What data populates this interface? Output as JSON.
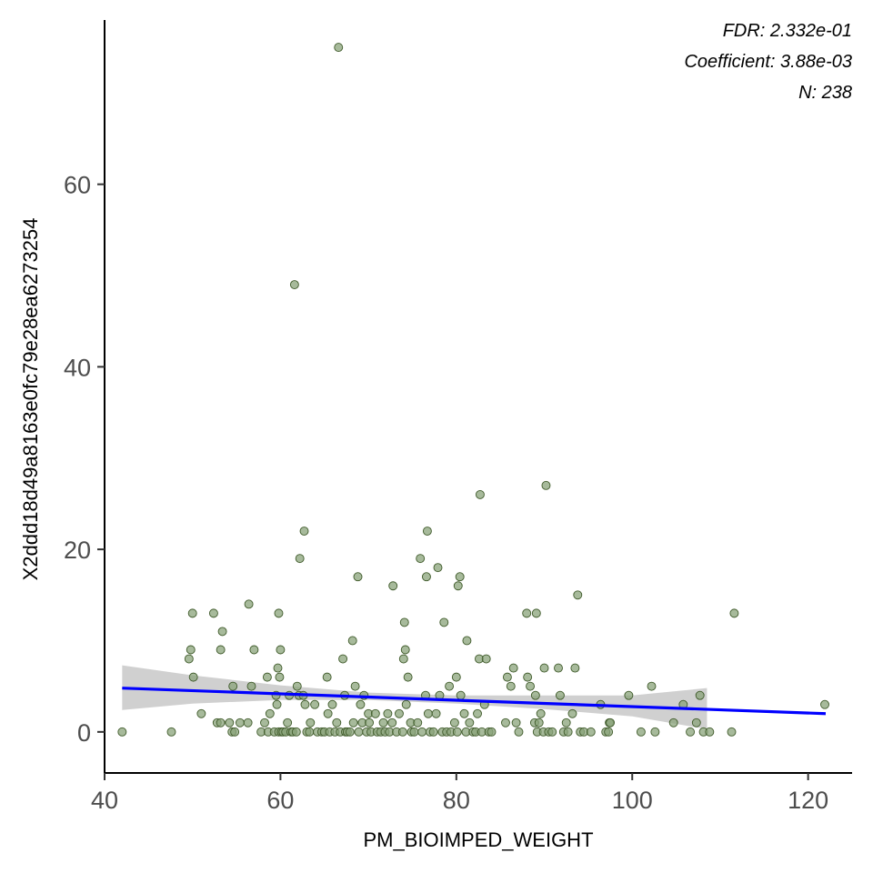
{
  "chart_data": {
    "type": "scatter",
    "title": "",
    "xlabel": "PM_BIOIMPED_WEIGHT",
    "ylabel": "X2ddd18d49a8163e0fc79e28ea6273254",
    "xlim": [
      40,
      125
    ],
    "ylim": [
      -4.5,
      78
    ],
    "xticks": [
      40,
      60,
      80,
      100,
      120
    ],
    "yticks": [
      0,
      20,
      40,
      60
    ],
    "grid": false,
    "annotations": {
      "fdr": "FDR: 2.332e-01",
      "coefficient": "Coefficient: 3.88e-03",
      "n": "N: 238"
    },
    "colors": {
      "point_fill": "#8aa37a",
      "point_stroke": "#3f5a2a",
      "trend_line": "#0000ff",
      "confidence_band": "#c8c8c8"
    },
    "trend_line": {
      "x": [
        42,
        122
      ],
      "y": [
        4.8,
        2.0
      ]
    },
    "confidence_band": {
      "x": [
        42,
        50,
        60,
        70,
        80,
        90,
        100,
        108.5
      ],
      "lower": [
        2.4,
        3.1,
        3.5,
        3.5,
        3.1,
        2.5,
        1.7,
        0.3
      ],
      "upper": [
        7.3,
        6.2,
        5.1,
        4.3,
        4.0,
        4.0,
        4.0,
        4.8
      ]
    },
    "points": [
      [
        42,
        0
      ],
      [
        47.6,
        0
      ],
      [
        49.6,
        8
      ],
      [
        49.8,
        9
      ],
      [
        50,
        13
      ],
      [
        50.1,
        6
      ],
      [
        51,
        2
      ],
      [
        52.4,
        13
      ],
      [
        52.8,
        1
      ],
      [
        53.2,
        1
      ],
      [
        53.2,
        9
      ],
      [
        53.4,
        11
      ],
      [
        54.2,
        1
      ],
      [
        54.5,
        0
      ],
      [
        54.6,
        5
      ],
      [
        54.8,
        0
      ],
      [
        55.4,
        1
      ],
      [
        56.3,
        1
      ],
      [
        56.4,
        14
      ],
      [
        56.7,
        5
      ],
      [
        57,
        9
      ],
      [
        57.8,
        0
      ],
      [
        58.2,
        1
      ],
      [
        58.5,
        6
      ],
      [
        58.6,
        0
      ],
      [
        58.8,
        2
      ],
      [
        59.3,
        0
      ],
      [
        59.5,
        4
      ],
      [
        59.6,
        3
      ],
      [
        59.7,
        7
      ],
      [
        59.8,
        0
      ],
      [
        59.8,
        13
      ],
      [
        59.9,
        6
      ],
      [
        60,
        9
      ],
      [
        60.1,
        0
      ],
      [
        60.3,
        0
      ],
      [
        60.6,
        0
      ],
      [
        60.8,
        1
      ],
      [
        61,
        4
      ],
      [
        61.2,
        0
      ],
      [
        61.4,
        0
      ],
      [
        61.6,
        49
      ],
      [
        61.8,
        0
      ],
      [
        61.9,
        5
      ],
      [
        62.1,
        4
      ],
      [
        62.2,
        19
      ],
      [
        62.6,
        4
      ],
      [
        62.7,
        22
      ],
      [
        62.8,
        3
      ],
      [
        63,
        0
      ],
      [
        63.3,
        0
      ],
      [
        63.4,
        1
      ],
      [
        63.9,
        3
      ],
      [
        64.2,
        0
      ],
      [
        64.7,
        0
      ],
      [
        65,
        0
      ],
      [
        65.3,
        6
      ],
      [
        65.4,
        2
      ],
      [
        65.6,
        0
      ],
      [
        65.9,
        3
      ],
      [
        66.2,
        0
      ],
      [
        66.4,
        1
      ],
      [
        66.6,
        75
      ],
      [
        66.8,
        0
      ],
      [
        67.1,
        8
      ],
      [
        67.3,
        4
      ],
      [
        67.4,
        0
      ],
      [
        67.6,
        0
      ],
      [
        67.9,
        0
      ],
      [
        68.2,
        10
      ],
      [
        68.3,
        1
      ],
      [
        68.5,
        5
      ],
      [
        68.8,
        17
      ],
      [
        68.9,
        0
      ],
      [
        69.1,
        3
      ],
      [
        69.3,
        1
      ],
      [
        69.5,
        4
      ],
      [
        69.8,
        0
      ],
      [
        70,
        2
      ],
      [
        70.1,
        1
      ],
      [
        70.3,
        0
      ],
      [
        70.8,
        2
      ],
      [
        71,
        0
      ],
      [
        71.4,
        0
      ],
      [
        71.7,
        1
      ],
      [
        71.9,
        0
      ],
      [
        72.2,
        2
      ],
      [
        72.4,
        0
      ],
      [
        72.7,
        1
      ],
      [
        72.8,
        16
      ],
      [
        73.2,
        0
      ],
      [
        73.5,
        2
      ],
      [
        73.9,
        0
      ],
      [
        74,
        8
      ],
      [
        74.1,
        12
      ],
      [
        74.2,
        9
      ],
      [
        74.3,
        3
      ],
      [
        74.5,
        6
      ],
      [
        74.8,
        1
      ],
      [
        74.9,
        0
      ],
      [
        75.2,
        0
      ],
      [
        75.6,
        1
      ],
      [
        75.9,
        19
      ],
      [
        76.1,
        0
      ],
      [
        76.5,
        4
      ],
      [
        76.6,
        17
      ],
      [
        76.7,
        22
      ],
      [
        76.8,
        2
      ],
      [
        77,
        0
      ],
      [
        77.4,
        0
      ],
      [
        77.7,
        2
      ],
      [
        77.9,
        18
      ],
      [
        78.1,
        4
      ],
      [
        78.4,
        0
      ],
      [
        78.6,
        12
      ],
      [
        78.9,
        0
      ],
      [
        79.2,
        5
      ],
      [
        79.4,
        0
      ],
      [
        79.8,
        1
      ],
      [
        80,
        6
      ],
      [
        80.1,
        0
      ],
      [
        80.2,
        16
      ],
      [
        80.4,
        17
      ],
      [
        80.5,
        4
      ],
      [
        80.9,
        2
      ],
      [
        81.1,
        0
      ],
      [
        81.2,
        10
      ],
      [
        81.5,
        1
      ],
      [
        81.9,
        0
      ],
      [
        82.2,
        0
      ],
      [
        82.4,
        2
      ],
      [
        82.6,
        8
      ],
      [
        82.7,
        26
      ],
      [
        82.9,
        0
      ],
      [
        83.2,
        3
      ],
      [
        83.4,
        8
      ],
      [
        83.7,
        0
      ],
      [
        84,
        0
      ],
      [
        85.6,
        1
      ],
      [
        85.8,
        6
      ],
      [
        86.2,
        5
      ],
      [
        86.5,
        7
      ],
      [
        86.8,
        1
      ],
      [
        87.1,
        0
      ],
      [
        88,
        13
      ],
      [
        88.1,
        6
      ],
      [
        88.4,
        5
      ],
      [
        88.9,
        1
      ],
      [
        89,
        4
      ],
      [
        89.1,
        13
      ],
      [
        89.2,
        0
      ],
      [
        89.4,
        1
      ],
      [
        89.6,
        2
      ],
      [
        89.9,
        0
      ],
      [
        90,
        7
      ],
      [
        90.2,
        27
      ],
      [
        90.5,
        0
      ],
      [
        90.9,
        0
      ],
      [
        91.6,
        7
      ],
      [
        91.8,
        4
      ],
      [
        92.2,
        0
      ],
      [
        92.5,
        1
      ],
      [
        92.7,
        0
      ],
      [
        93.2,
        2
      ],
      [
        93.5,
        7
      ],
      [
        93.8,
        15
      ],
      [
        94.1,
        0
      ],
      [
        94.5,
        0
      ],
      [
        95.3,
        0
      ],
      [
        96.4,
        3
      ],
      [
        97,
        0
      ],
      [
        97.3,
        0
      ],
      [
        97.4,
        1
      ],
      [
        97.5,
        1
      ],
      [
        99.6,
        4
      ],
      [
        101,
        0
      ],
      [
        102.2,
        5
      ],
      [
        102.6,
        0
      ],
      [
        104.7,
        1
      ],
      [
        105.8,
        3
      ],
      [
        106.6,
        0
      ],
      [
        107.3,
        1
      ],
      [
        107.7,
        4
      ],
      [
        108.1,
        0
      ],
      [
        108.8,
        0
      ],
      [
        111.3,
        0
      ],
      [
        111.6,
        13
      ],
      [
        121.9,
        3
      ]
    ]
  }
}
